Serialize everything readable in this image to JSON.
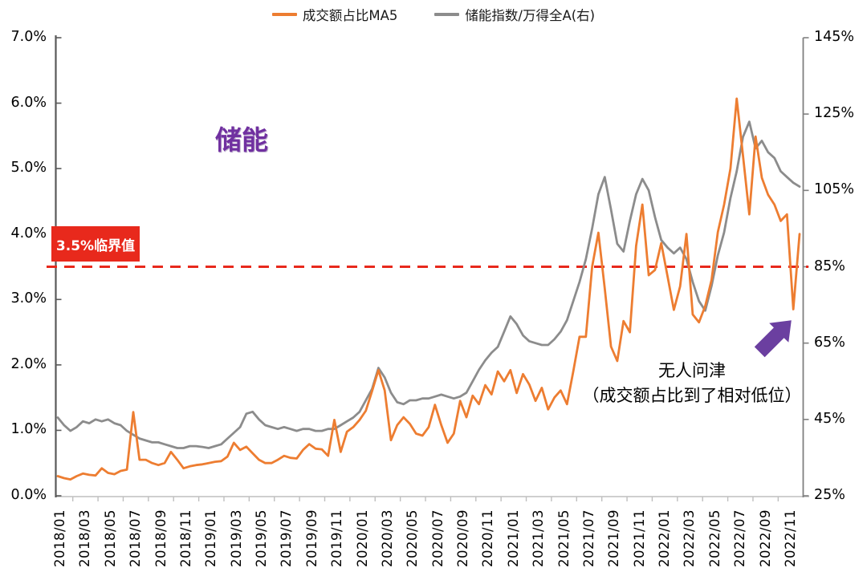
{
  "legend_note": "dual-axis line chart",
  "annotations": {
    "sector_label": "储能",
    "note_line1": "无人问津",
    "note_line2": "（成交额占比到了相对低位）"
  },
  "chart_data": {
    "type": "line",
    "title": "储能",
    "legend_position": "top-center",
    "grid": false,
    "threshold": {
      "label": "3.5%临界值",
      "value": 3.5,
      "axis": "left",
      "color": "#e8291c",
      "style": "dashed"
    },
    "left_axis": {
      "min": 0,
      "max": 7,
      "unit": "%",
      "ticks": [
        {
          "label": "7.0%",
          "value": 7
        },
        {
          "label": "6.0%",
          "value": 6
        },
        {
          "label": "5.0%",
          "value": 5
        },
        {
          "label": "4.0%",
          "value": 4
        },
        {
          "label": "3.0%",
          "value": 3
        },
        {
          "label": "2.0%",
          "value": 2
        },
        {
          "label": "1.0%",
          "value": 1
        },
        {
          "label": "0.0%",
          "value": 0
        }
      ]
    },
    "right_axis": {
      "min": 25,
      "max": 145,
      "unit": "%",
      "ticks": [
        {
          "label": "145%",
          "value": 145
        },
        {
          "label": "125%",
          "value": 125
        },
        {
          "label": "105%",
          "value": 105
        },
        {
          "label": "85%",
          "value": 85
        },
        {
          "label": "65%",
          "value": 65
        },
        {
          "label": "45%",
          "value": 45
        },
        {
          "label": "25%",
          "value": 25
        }
      ]
    },
    "x_tick_labels": [
      "2018/01",
      "2018/03",
      "2018/05",
      "2018/07",
      "2018/09",
      "2018/11",
      "2019/01",
      "2019/03",
      "2019/05",
      "2019/07",
      "2019/09",
      "2019/11",
      "2020/01",
      "2020/03",
      "2020/05",
      "2020/07",
      "2020/09",
      "2020/11",
      "2021/01",
      "2021/03",
      "2021/05",
      "2021/07",
      "2021/09",
      "2021/11",
      "2022/01",
      "2022/03",
      "2022/05",
      "2022/07",
      "2022/09",
      "2022/11"
    ],
    "x": [
      "2018/01/01",
      "2018/01/16",
      "2018/02/01",
      "2018/02/16",
      "2018/03/01",
      "2018/03/16",
      "2018/04/01",
      "2018/04/16",
      "2018/05/01",
      "2018/05/16",
      "2018/06/01",
      "2018/06/16",
      "2018/07/01",
      "2018/07/16",
      "2018/08/01",
      "2018/08/16",
      "2018/09/01",
      "2018/09/16",
      "2018/10/01",
      "2018/10/16",
      "2018/11/01",
      "2018/11/16",
      "2018/12/01",
      "2018/12/16",
      "2019/01/01",
      "2019/01/16",
      "2019/02/01",
      "2019/02/16",
      "2019/03/01",
      "2019/03/16",
      "2019/04/01",
      "2019/04/16",
      "2019/05/01",
      "2019/05/16",
      "2019/06/01",
      "2019/06/16",
      "2019/07/01",
      "2019/07/16",
      "2019/08/01",
      "2019/08/16",
      "2019/09/01",
      "2019/09/16",
      "2019/10/01",
      "2019/10/16",
      "2019/11/01",
      "2019/11/16",
      "2019/12/01",
      "2019/12/16",
      "2020/01/01",
      "2020/01/16",
      "2020/02/01",
      "2020/02/16",
      "2020/03/01",
      "2020/03/16",
      "2020/04/01",
      "2020/04/16",
      "2020/05/01",
      "2020/05/16",
      "2020/06/01",
      "2020/06/16",
      "2020/07/01",
      "2020/07/16",
      "2020/08/01",
      "2020/08/16",
      "2020/09/01",
      "2020/09/16",
      "2020/10/01",
      "2020/10/16",
      "2020/11/01",
      "2020/11/16",
      "2020/12/01",
      "2020/12/16",
      "2021/01/01",
      "2021/01/16",
      "2021/02/01",
      "2021/02/16",
      "2021/03/01",
      "2021/03/16",
      "2021/04/01",
      "2021/04/16",
      "2021/05/01",
      "2021/05/16",
      "2021/06/01",
      "2021/06/16",
      "2021/07/01",
      "2021/07/16",
      "2021/08/01",
      "2021/08/16",
      "2021/09/01",
      "2021/09/16",
      "2021/10/01",
      "2021/10/16",
      "2021/11/01",
      "2021/11/16",
      "2021/12/01",
      "2021/12/16",
      "2022/01/01",
      "2022/01/16",
      "2022/02/01",
      "2022/02/16",
      "2022/03/01",
      "2022/03/16",
      "2022/04/01",
      "2022/04/16",
      "2022/05/01",
      "2022/05/16",
      "2022/06/01",
      "2022/06/16",
      "2022/07/01",
      "2022/07/16",
      "2022/08/01",
      "2022/08/16",
      "2022/09/01",
      "2022/09/16",
      "2022/10/01",
      "2022/10/16",
      "2022/11/01",
      "2022/11/16",
      "2022/12/01"
    ],
    "series": [
      {
        "name": "成交额占比MA5",
        "axis": "left",
        "color": "#ed7d31",
        "unit": "%",
        "values": [
          0.3,
          0.27,
          0.25,
          0.3,
          0.34,
          0.32,
          0.31,
          0.42,
          0.35,
          0.33,
          0.38,
          0.4,
          1.28,
          0.55,
          0.55,
          0.5,
          0.47,
          0.5,
          0.67,
          0.55,
          0.42,
          0.45,
          0.47,
          0.48,
          0.5,
          0.52,
          0.53,
          0.6,
          0.81,
          0.7,
          0.75,
          0.65,
          0.55,
          0.5,
          0.5,
          0.55,
          0.61,
          0.58,
          0.57,
          0.7,
          0.79,
          0.72,
          0.71,
          0.61,
          1.16,
          0.67,
          0.98,
          1.05,
          1.16,
          1.3,
          1.6,
          1.92,
          1.61,
          0.85,
          1.08,
          1.2,
          1.1,
          0.95,
          0.92,
          1.05,
          1.39,
          1.08,
          0.81,
          0.95,
          1.45,
          1.2,
          1.53,
          1.4,
          1.69,
          1.55,
          1.9,
          1.75,
          1.92,
          1.57,
          1.86,
          1.7,
          1.45,
          1.65,
          1.32,
          1.5,
          1.61,
          1.4,
          1.9,
          2.43,
          2.43,
          3.5,
          4.02,
          3.17,
          2.28,
          2.06,
          2.67,
          2.5,
          3.82,
          4.45,
          3.37,
          3.45,
          3.86,
          3.35,
          2.84,
          3.2,
          4.0,
          2.77,
          2.65,
          2.9,
          3.3,
          4.03,
          4.45,
          5.0,
          6.07,
          5.2,
          4.3,
          5.49,
          4.86,
          4.6,
          4.45,
          4.2,
          4.3,
          2.85,
          4.0
        ]
      },
      {
        "name": "储能指数/万得全A(右)",
        "axis": "right",
        "color": "#8c8c8c",
        "unit": "%",
        "values": [
          45.5,
          43.5,
          42.0,
          43.0,
          44.5,
          44.0,
          45.0,
          44.5,
          45.0,
          44.0,
          43.5,
          42.0,
          41.0,
          40.0,
          39.5,
          39.0,
          39.0,
          38.5,
          38.0,
          37.5,
          37.5,
          38.0,
          38.0,
          37.8,
          37.5,
          38.0,
          38.5,
          40.0,
          41.5,
          43.0,
          46.5,
          47.0,
          45.0,
          43.5,
          43.0,
          42.5,
          43.0,
          42.5,
          42.0,
          42.5,
          42.5,
          42.0,
          42.0,
          42.5,
          42.5,
          43.5,
          44.5,
          45.5,
          47.0,
          50.0,
          53.0,
          58.5,
          56.0,
          52.0,
          49.5,
          49.0,
          50.0,
          50.0,
          50.5,
          50.5,
          51.0,
          51.5,
          51.0,
          50.5,
          51.0,
          52.0,
          55.0,
          58.0,
          60.5,
          62.5,
          64.0,
          68.0,
          72.0,
          70.0,
          67.0,
          65.5,
          65.0,
          64.5,
          64.5,
          66.0,
          68.0,
          71.0,
          76.0,
          81.0,
          87.0,
          95.0,
          104.0,
          108.5,
          100.0,
          91.0,
          89.0,
          97.0,
          104.0,
          108.0,
          105.0,
          98.0,
          92.0,
          90.0,
          88.5,
          90.0,
          87.0,
          81.0,
          76.0,
          73.5,
          80.0,
          88.0,
          94.0,
          103.0,
          110.0,
          119.0,
          123.0,
          116.0,
          118.0,
          115.0,
          113.5,
          110.0,
          108.5,
          107.0,
          106.0
        ]
      }
    ],
    "colors": {
      "accent_red": "#e8291c",
      "accent_purple": "#7030a0",
      "axis_left": "#595959",
      "axis_right": "#808080",
      "axis_bottom": "#bfbfbf"
    }
  }
}
